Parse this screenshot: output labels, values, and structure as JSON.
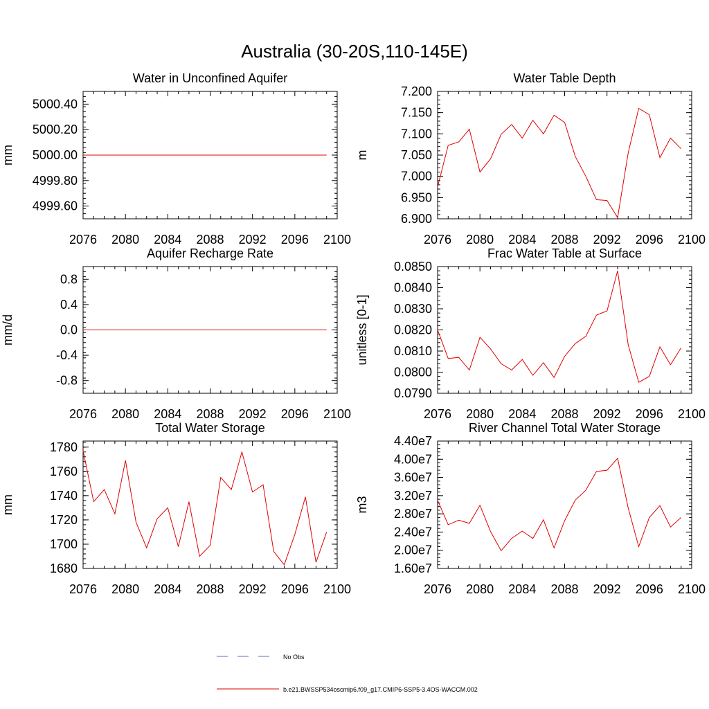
{
  "figure": {
    "title": "Australia (30-20S,110-145E)",
    "legend": [
      {
        "label": "No Obs",
        "style": "dashed",
        "color": "#5a6fb5"
      },
      {
        "label": "b.e21.BWSSP534oscmip6.f09_g17.CMIP6-SSP5-3.4OS-WACCM.002",
        "style": "solid",
        "color": "#e00000"
      }
    ]
  },
  "chart_data": [
    {
      "type": "line",
      "title": "Water in Unconfined Aquifer",
      "ylabel": "mm",
      "xlim": [
        2076,
        2100
      ],
      "ylim": [
        4999.5,
        5000.5
      ],
      "xticks": [
        "2076",
        "2080",
        "2084",
        "2088",
        "2092",
        "2096",
        "2100"
      ],
      "yticks": [
        {
          "v": 4999.6,
          "label": "4999.60"
        },
        {
          "v": 4999.8,
          "label": "4999.80"
        },
        {
          "v": 5000.0,
          "label": "5000.00"
        },
        {
          "v": 5000.2,
          "label": "5000.20"
        },
        {
          "v": 5000.4,
          "label": "5000.40"
        }
      ],
      "series": [
        {
          "color": "#e00000",
          "x": [
            2076,
            2077,
            2078,
            2079,
            2080,
            2081,
            2082,
            2083,
            2084,
            2085,
            2086,
            2087,
            2088,
            2089,
            2090,
            2091,
            2092,
            2093,
            2094,
            2095,
            2096,
            2097,
            2098,
            2099
          ],
          "y": [
            5000,
            5000,
            5000,
            5000,
            5000,
            5000,
            5000,
            5000,
            5000,
            5000,
            5000,
            5000,
            5000,
            5000,
            5000,
            5000,
            5000,
            5000,
            5000,
            5000,
            5000,
            5000,
            5000,
            5000
          ]
        }
      ]
    },
    {
      "type": "line",
      "title": "Water Table Depth",
      "ylabel": "m",
      "xlim": [
        2076,
        2100
      ],
      "ylim": [
        6.9,
        7.2
      ],
      "xticks": [
        "2076",
        "2080",
        "2084",
        "2088",
        "2092",
        "2096",
        "2100"
      ],
      "yticks": [
        {
          "v": 6.9,
          "label": "6.900"
        },
        {
          "v": 6.95,
          "label": "6.950"
        },
        {
          "v": 7.0,
          "label": "7.000"
        },
        {
          "v": 7.05,
          "label": "7.050"
        },
        {
          "v": 7.1,
          "label": "7.100"
        },
        {
          "v": 7.15,
          "label": "7.150"
        },
        {
          "v": 7.2,
          "label": "7.200"
        }
      ],
      "series": [
        {
          "color": "#e00000",
          "x": [
            2076,
            2077,
            2078,
            2079,
            2080,
            2081,
            2082,
            2083,
            2084,
            2085,
            2086,
            2087,
            2088,
            2089,
            2090,
            2091,
            2092,
            2093,
            2094,
            2095,
            2096,
            2097,
            2098,
            2099
          ],
          "y": [
            6.975,
            7.073,
            7.081,
            7.111,
            7.01,
            7.041,
            7.099,
            7.122,
            7.09,
            7.132,
            7.1,
            7.144,
            7.127,
            7.047,
            7.0,
            6.945,
            6.943,
            6.903,
            7.055,
            7.16,
            7.145,
            7.044,
            7.09,
            7.065
          ]
        }
      ]
    },
    {
      "type": "line",
      "title": "Aquifer Recharge Rate",
      "ylabel": "mm/d",
      "xlim": [
        2076,
        2100
      ],
      "ylim": [
        -1.0,
        1.0
      ],
      "xticks": [
        "2076",
        "2080",
        "2084",
        "2088",
        "2092",
        "2096",
        "2100"
      ],
      "yticks": [
        {
          "v": -0.8,
          "label": "-0.8"
        },
        {
          "v": -0.4,
          "label": "-0.4"
        },
        {
          "v": 0.0,
          "label": "0.0"
        },
        {
          "v": 0.4,
          "label": "0.4"
        },
        {
          "v": 0.8,
          "label": "0.8"
        }
      ],
      "series": [
        {
          "color": "#e00000",
          "x": [
            2076,
            2077,
            2078,
            2079,
            2080,
            2081,
            2082,
            2083,
            2084,
            2085,
            2086,
            2087,
            2088,
            2089,
            2090,
            2091,
            2092,
            2093,
            2094,
            2095,
            2096,
            2097,
            2098,
            2099
          ],
          "y": [
            0,
            0,
            0,
            0,
            0,
            0,
            0,
            0,
            0,
            0,
            0,
            0,
            0,
            0,
            0,
            0,
            0,
            0,
            0,
            0,
            0,
            0,
            0,
            0
          ]
        }
      ]
    },
    {
      "type": "line",
      "title": "Frac Water Table at Surface",
      "ylabel": "unitless [0-1]",
      "xlim": [
        2076,
        2100
      ],
      "ylim": [
        0.079,
        0.085
      ],
      "xticks": [
        "2076",
        "2080",
        "2084",
        "2088",
        "2092",
        "2096",
        "2100"
      ],
      "yticks": [
        {
          "v": 0.079,
          "label": "0.0790"
        },
        {
          "v": 0.08,
          "label": "0.0800"
        },
        {
          "v": 0.081,
          "label": "0.0810"
        },
        {
          "v": 0.082,
          "label": "0.0820"
        },
        {
          "v": 0.083,
          "label": "0.0830"
        },
        {
          "v": 0.084,
          "label": "0.0840"
        },
        {
          "v": 0.085,
          "label": "0.0850"
        }
      ],
      "series": [
        {
          "color": "#e00000",
          "x": [
            2076,
            2077,
            2078,
            2079,
            2080,
            2081,
            2082,
            2083,
            2084,
            2085,
            2086,
            2087,
            2088,
            2089,
            2090,
            2091,
            2092,
            2093,
            2094,
            2095,
            2096,
            2097,
            2098,
            2099
          ],
          "y": [
            0.082,
            0.08065,
            0.0807,
            0.0801,
            0.08165,
            0.0811,
            0.0804,
            0.0801,
            0.0806,
            0.07985,
            0.08045,
            0.07975,
            0.08075,
            0.08135,
            0.0817,
            0.0827,
            0.0829,
            0.0848,
            0.0813,
            0.07952,
            0.0798,
            0.0812,
            0.08035,
            0.08115
          ]
        }
      ]
    },
    {
      "type": "line",
      "title": "Total Water Storage",
      "ylabel": "mm",
      "xlim": [
        2076,
        2100
      ],
      "ylim": [
        1680,
        1785
      ],
      "xticks": [
        "2076",
        "2080",
        "2084",
        "2088",
        "2092",
        "2096",
        "2100"
      ],
      "yticks": [
        {
          "v": 1680,
          "label": "1680"
        },
        {
          "v": 1700,
          "label": "1700"
        },
        {
          "v": 1720,
          "label": "1720"
        },
        {
          "v": 1740,
          "label": "1740"
        },
        {
          "v": 1760,
          "label": "1760"
        },
        {
          "v": 1780,
          "label": "1780"
        }
      ],
      "series": [
        {
          "color": "#e00000",
          "x": [
            2076,
            2077,
            2078,
            2079,
            2080,
            2081,
            2082,
            2083,
            2084,
            2085,
            2086,
            2087,
            2088,
            2089,
            2090,
            2091,
            2092,
            2093,
            2094,
            2095,
            2096,
            2097,
            2098,
            2099
          ],
          "y": [
            1777,
            1735,
            1745,
            1725,
            1769,
            1718,
            1697,
            1721,
            1730,
            1698,
            1735,
            1690,
            1699,
            1755,
            1745,
            1776,
            1743,
            1749,
            1694,
            1683,
            1708,
            1739,
            1685,
            1710
          ]
        }
      ]
    },
    {
      "type": "line",
      "title": "River Channel Total Water Storage",
      "ylabel": "m3",
      "xlim": [
        2076,
        2100
      ],
      "ylim": [
        16000000,
        44000000
      ],
      "xticks": [
        "2076",
        "2080",
        "2084",
        "2088",
        "2092",
        "2096",
        "2100"
      ],
      "yticks": [
        {
          "v": 16000000,
          "label": "1.60e7"
        },
        {
          "v": 20000000,
          "label": "2.00e7"
        },
        {
          "v": 24000000,
          "label": "2.40e7"
        },
        {
          "v": 28000000,
          "label": "2.80e7"
        },
        {
          "v": 32000000,
          "label": "3.20e7"
        },
        {
          "v": 36000000,
          "label": "3.60e7"
        },
        {
          "v": 40000000,
          "label": "4.00e7"
        },
        {
          "v": 44000000,
          "label": "4.40e7"
        }
      ],
      "series": [
        {
          "color": "#e00000",
          "x": [
            2076,
            2077,
            2078,
            2079,
            2080,
            2081,
            2082,
            2083,
            2084,
            2085,
            2086,
            2087,
            2088,
            2089,
            2090,
            2091,
            2092,
            2093,
            2094,
            2095,
            2096,
            2097,
            2098,
            2099
          ],
          "y": [
            31000000,
            25600000,
            26600000,
            25900000,
            29900000,
            24100000,
            19900000,
            22600000,
            24200000,
            22600000,
            26700000,
            20500000,
            26500000,
            31000000,
            33200000,
            37300000,
            37600000,
            40200000,
            29300000,
            20800000,
            27200000,
            29800000,
            25100000,
            27200000
          ]
        }
      ]
    }
  ]
}
